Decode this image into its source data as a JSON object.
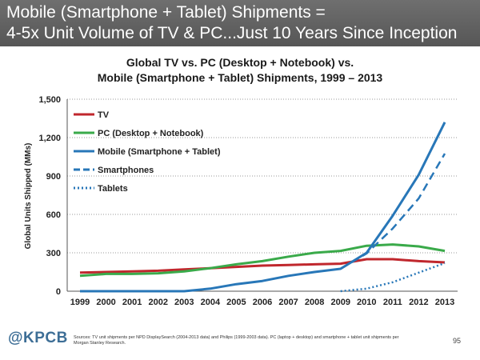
{
  "slide": {
    "headline_line1": "Mobile (Smartphone + Tablet) Shipments =",
    "headline_line2": "4-5x Unit Volume of TV & PC...Just 10 Years Since Inception",
    "logo": "@KPCB",
    "source": "Sources: TV unit shipments per NPD DisplaySearch (2004-2013 data) and Philips (1999-2003 data). PC (laptop + desktop) and smartphone + tablet unit shipments per Morgan Stanley Research.",
    "page_number": "95"
  },
  "chart_data": {
    "type": "line",
    "title_line1": "Global TV vs. PC (Desktop + Notebook) vs.",
    "title_line2": "Mobile (Smartphone + Tablet) Shipments, 1999 – 2013",
    "xlabel": "",
    "ylabel": "Global Units Shipped (MMs)",
    "ylim": [
      0,
      1500
    ],
    "yticks": [
      0,
      300,
      600,
      900,
      1200,
      1500
    ],
    "ytick_labels": [
      "0",
      "300",
      "600",
      "900",
      "1,200",
      "1,500"
    ],
    "grid": "horizontal dotted",
    "legend_position": "top-left",
    "x": [
      "1999",
      "2000",
      "2001",
      "2002",
      "2003",
      "2004",
      "2005",
      "2006",
      "2007",
      "2008",
      "2009",
      "2010",
      "2011",
      "2012",
      "2013"
    ],
    "series": [
      {
        "name": "TV",
        "color": "#c0272d",
        "style": "solid",
        "values": [
          145,
          150,
          155,
          160,
          170,
          180,
          190,
          200,
          205,
          210,
          215,
          250,
          250,
          235,
          225
        ]
      },
      {
        "name": "PC (Desktop + Notebook)",
        "color": "#3aaa4a",
        "style": "solid",
        "values": [
          120,
          135,
          135,
          140,
          155,
          180,
          210,
          235,
          270,
          300,
          315,
          355,
          365,
          350,
          315
        ]
      },
      {
        "name": "Mobile (Smartphone + Tablet)",
        "color": "#2877b8",
        "style": "solid",
        "values": [
          0,
          0,
          0,
          0,
          0,
          20,
          55,
          80,
          120,
          150,
          175,
          300,
          590,
          910,
          1320
        ]
      },
      {
        "name": "Smartphones",
        "color": "#2877b8",
        "style": "dashed",
        "values": [
          null,
          null,
          null,
          null,
          null,
          null,
          null,
          null,
          null,
          null,
          175,
          295,
          490,
          725,
          1075
        ]
      },
      {
        "name": "Tablets",
        "color": "#2877b8",
        "style": "dotted",
        "values": [
          null,
          null,
          null,
          null,
          null,
          null,
          null,
          null,
          null,
          null,
          0,
          20,
          70,
          145,
          220
        ]
      }
    ]
  }
}
